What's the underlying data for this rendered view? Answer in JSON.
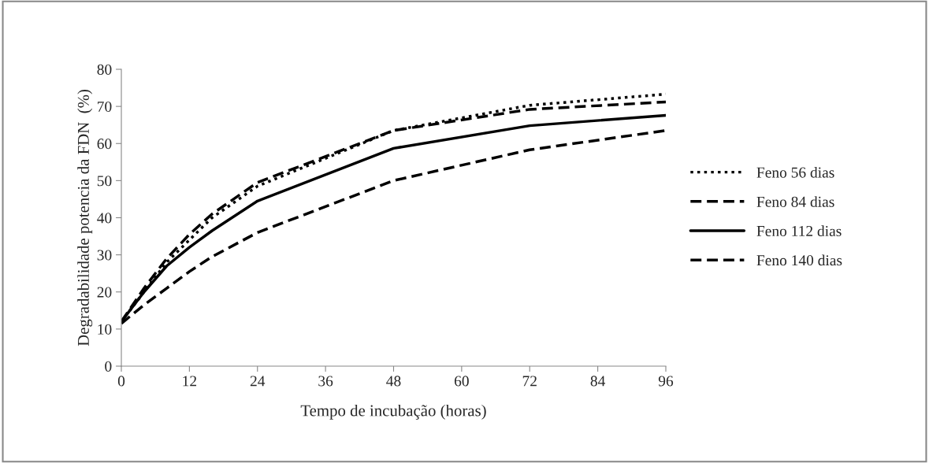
{
  "chart_data": {
    "type": "line",
    "xlabel": "Tempo de incubação (horas)",
    "ylabel": "Degradabilidade potencia da FDN  (%)",
    "x": [
      0,
      4,
      8,
      12,
      16,
      24,
      48,
      72,
      96
    ],
    "series": [
      {
        "name": "Feno 56 dias",
        "color": "#000000",
        "line_style": "dotted",
        "values": [
          12,
          20,
          28,
          34,
          40,
          48.5,
          63.5,
          70.3,
          73.3
        ]
      },
      {
        "name": "Feno 84 dias",
        "color": "#000000",
        "line_style": "dashed",
        "values": [
          12,
          21,
          29,
          35.5,
          41,
          49.5,
          63.5,
          69.2,
          71.2
        ]
      },
      {
        "name": "Feno 112 dias",
        "color": "#000000",
        "line_style": "solid",
        "values": [
          12,
          20,
          27,
          32,
          36.5,
          44.5,
          58.7,
          64.8,
          67.6
        ]
      },
      {
        "name": "Feno 140 dias",
        "color": "#000000",
        "line_style": "dashed",
        "values": [
          11.5,
          16.5,
          21,
          25.5,
          29.5,
          36,
          50,
          58.3,
          63.5
        ]
      }
    ],
    "xlim": [
      0,
      96
    ],
    "xticks": [
      0,
      12,
      24,
      36,
      48,
      60,
      72,
      84,
      96
    ],
    "ylim": [
      0,
      80
    ],
    "yticks": [
      0,
      10,
      20,
      30,
      40,
      50,
      60,
      70,
      80
    ],
    "grid": false,
    "legend": "right",
    "marker": "none"
  }
}
